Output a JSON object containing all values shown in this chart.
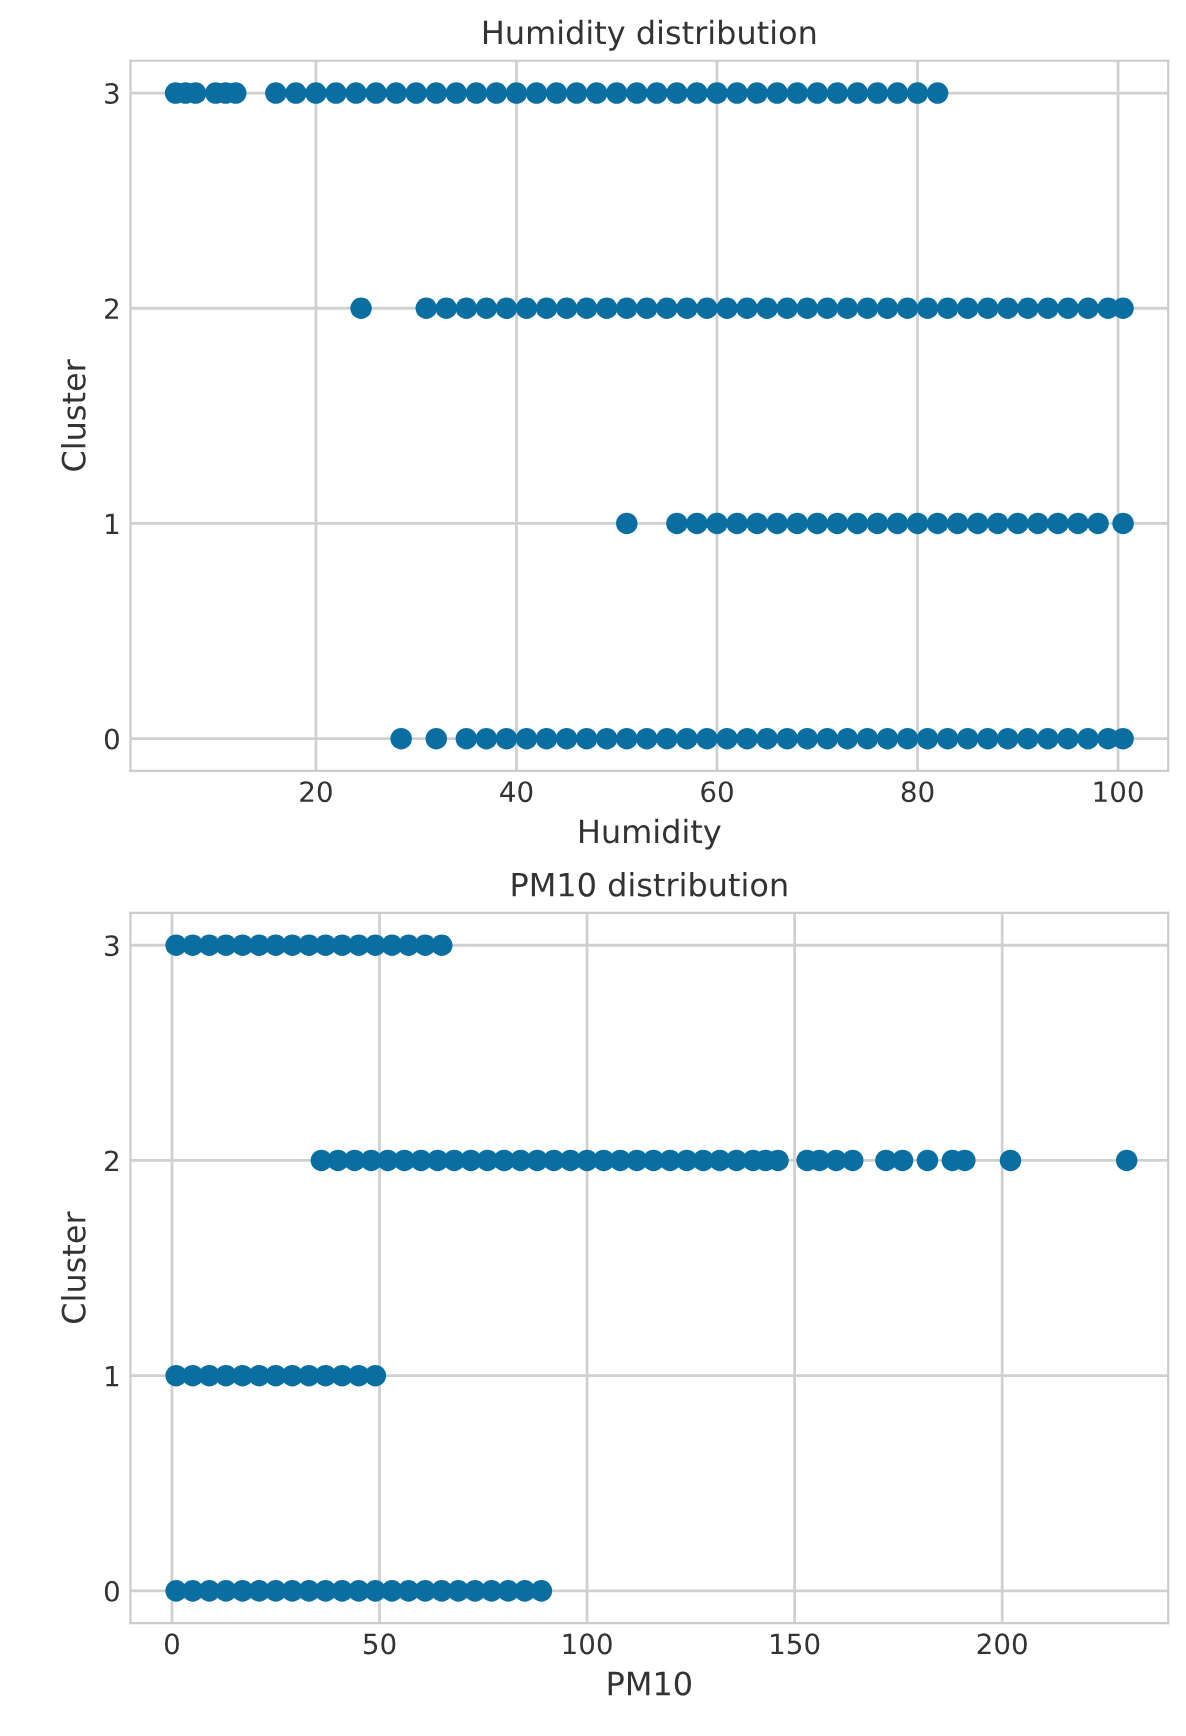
{
  "chart_data": [
    {
      "type": "scatter",
      "title": "Humidity distribution",
      "xlabel": "Humidity",
      "ylabel": "Cluster",
      "xlim": [
        1.5,
        105
      ],
      "xticks": [
        20,
        40,
        60,
        80,
        100
      ],
      "ylim": [
        -0.15,
        3.15
      ],
      "yticks": [
        0,
        1,
        2,
        3
      ],
      "grid": true,
      "marker": "circle",
      "series": [
        {
          "color": "#0a6fa0",
          "x": [
            6,
            7,
            8,
            10,
            11,
            12,
            16,
            18,
            20,
            22,
            24,
            26,
            28,
            30,
            32,
            34,
            36,
            38,
            40,
            42,
            44,
            46,
            48,
            50,
            52,
            54,
            56,
            58,
            60,
            62,
            64,
            66,
            68,
            70,
            72,
            74,
            76,
            78,
            80,
            82
          ],
          "values": [
            3,
            3,
            3,
            3,
            3,
            3,
            3,
            3,
            3,
            3,
            3,
            3,
            3,
            3,
            3,
            3,
            3,
            3,
            3,
            3,
            3,
            3,
            3,
            3,
            3,
            3,
            3,
            3,
            3,
            3,
            3,
            3,
            3,
            3,
            3,
            3,
            3,
            3,
            3,
            3
          ]
        },
        {
          "color": "#0a6fa0",
          "x": [
            24.5,
            31,
            33,
            35,
            37,
            39,
            41,
            43,
            45,
            47,
            49,
            51,
            53,
            55,
            57,
            59,
            61,
            63,
            65,
            67,
            69,
            71,
            73,
            75,
            77,
            79,
            81,
            83,
            85,
            87,
            89,
            91,
            93,
            95,
            97,
            99,
            100.5
          ],
          "values": [
            2,
            2,
            2,
            2,
            2,
            2,
            2,
            2,
            2,
            2,
            2,
            2,
            2,
            2,
            2,
            2,
            2,
            2,
            2,
            2,
            2,
            2,
            2,
            2,
            2,
            2,
            2,
            2,
            2,
            2,
            2,
            2,
            2,
            2,
            2,
            2,
            2
          ]
        },
        {
          "color": "#0a6fa0",
          "x": [
            51,
            56,
            58,
            60,
            62,
            64,
            66,
            68,
            70,
            72,
            74,
            76,
            78,
            80,
            82,
            84,
            86,
            88,
            90,
            92,
            94,
            96,
            98,
            100.5
          ],
          "values": [
            1,
            1,
            1,
            1,
            1,
            1,
            1,
            1,
            1,
            1,
            1,
            1,
            1,
            1,
            1,
            1,
            1,
            1,
            1,
            1,
            1,
            1,
            1,
            1
          ]
        },
        {
          "color": "#0a6fa0",
          "x": [
            28.5,
            32,
            35,
            37,
            39,
            41,
            43,
            45,
            47,
            49,
            51,
            53,
            55,
            57,
            59,
            61,
            63,
            65,
            67,
            69,
            71,
            73,
            75,
            77,
            79,
            81,
            83,
            85,
            87,
            89,
            91,
            93,
            95,
            97,
            99,
            100.5
          ],
          "values": [
            0,
            0,
            0,
            0,
            0,
            0,
            0,
            0,
            0,
            0,
            0,
            0,
            0,
            0,
            0,
            0,
            0,
            0,
            0,
            0,
            0,
            0,
            0,
            0,
            0,
            0,
            0,
            0,
            0,
            0,
            0,
            0,
            0,
            0,
            0,
            0
          ]
        }
      ]
    },
    {
      "type": "scatter",
      "title": "PM10 distribution",
      "xlabel": "PM10",
      "ylabel": "Cluster",
      "xlim": [
        -10,
        240
      ],
      "xticks": [
        0,
        50,
        100,
        150,
        200
      ],
      "ylim": [
        -0.15,
        3.15
      ],
      "yticks": [
        0,
        1,
        2,
        3
      ],
      "grid": true,
      "marker": "circle",
      "series": [
        {
          "color": "#0a6fa0",
          "x": [
            1,
            5,
            9,
            13,
            17,
            21,
            25,
            29,
            33,
            37,
            41,
            45,
            49,
            53,
            57,
            61,
            65
          ],
          "values": [
            3,
            3,
            3,
            3,
            3,
            3,
            3,
            3,
            3,
            3,
            3,
            3,
            3,
            3,
            3,
            3,
            3
          ]
        },
        {
          "color": "#0a6fa0",
          "x": [
            36,
            40,
            44,
            48,
            52,
            56,
            60,
            64,
            68,
            72,
            76,
            80,
            84,
            88,
            92,
            96,
            100,
            104,
            108,
            112,
            116,
            120,
            124,
            128,
            132,
            136,
            140,
            143,
            146,
            153,
            156,
            160,
            164,
            172,
            176,
            182,
            188,
            191,
            202,
            230
          ],
          "values": [
            2,
            2,
            2,
            2,
            2,
            2,
            2,
            2,
            2,
            2,
            2,
            2,
            2,
            2,
            2,
            2,
            2,
            2,
            2,
            2,
            2,
            2,
            2,
            2,
            2,
            2,
            2,
            2,
            2,
            2,
            2,
            2,
            2,
            2,
            2,
            2,
            2,
            2,
            2,
            2
          ]
        },
        {
          "color": "#0a6fa0",
          "x": [
            1,
            5,
            9,
            13,
            17,
            21,
            25,
            29,
            33,
            37,
            41,
            45,
            49
          ],
          "values": [
            1,
            1,
            1,
            1,
            1,
            1,
            1,
            1,
            1,
            1,
            1,
            1,
            1
          ]
        },
        {
          "color": "#0a6fa0",
          "x": [
            1,
            5,
            9,
            13,
            17,
            21,
            25,
            29,
            33,
            37,
            41,
            45,
            49,
            53,
            57,
            61,
            65,
            69,
            73,
            77,
            81,
            85,
            89
          ],
          "values": [
            0,
            0,
            0,
            0,
            0,
            0,
            0,
            0,
            0,
            0,
            0,
            0,
            0,
            0,
            0,
            0,
            0,
            0,
            0,
            0,
            0,
            0,
            0
          ]
        }
      ]
    }
  ]
}
